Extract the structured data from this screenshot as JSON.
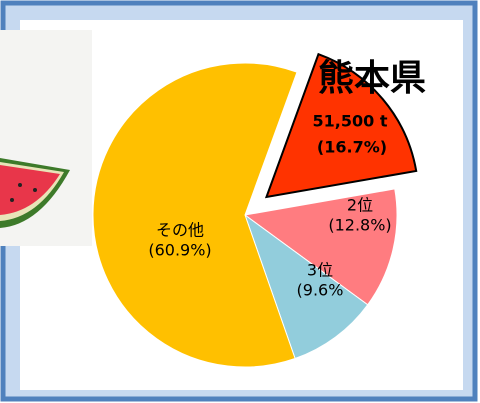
{
  "chart_data": {
    "type": "pie",
    "categories": [
      "熊本県",
      "2位",
      "3位",
      "その他"
    ],
    "values": [
      16.7,
      12.8,
      9.6,
      60.9
    ],
    "value_labels": [
      "(16.7%)",
      "(12.8%)",
      "(9.6%",
      "(60.9%)"
    ],
    "colors": [
      "#ff3300",
      "#ff7c80",
      "#92cddc",
      "#ffc000"
    ],
    "annotation": "51,500 t",
    "exploded": [
      true,
      false,
      false,
      false
    ]
  }
}
